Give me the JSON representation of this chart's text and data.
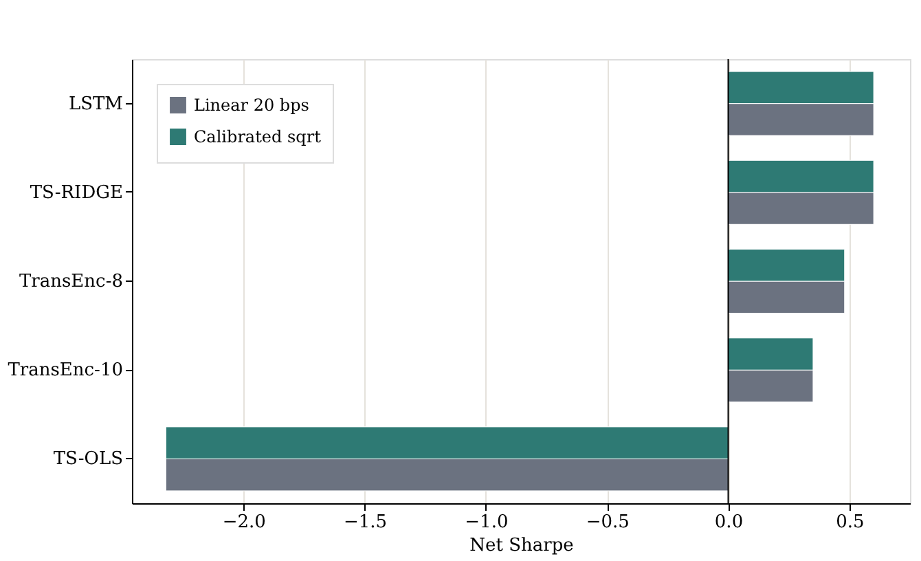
{
  "chart_data": {
    "type": "bar",
    "orientation": "horizontal",
    "xlabel": "Net Sharpe",
    "categories": [
      "LSTM",
      "TS-RIDGE",
      "TransEnc-8",
      "TransEnc-10",
      "TS-OLS"
    ],
    "series": [
      {
        "name": "Linear 20 bps",
        "color": "#6b7280",
        "values": [
          0.6,
          0.6,
          0.48,
          0.35,
          -2.32
        ]
      },
      {
        "name": "Calibrated sqrt",
        "color": "#2e7a74",
        "values": [
          0.6,
          0.6,
          0.48,
          0.35,
          -2.32
        ]
      }
    ],
    "xlim": [
      -2.46,
      0.75
    ],
    "xticks": [
      {
        "value": -2,
        "label": "−2.0"
      },
      {
        "value": -1.5,
        "label": "−1.5"
      },
      {
        "value": -1,
        "label": "−1.0"
      },
      {
        "value": -0.5,
        "label": "−0.5"
      },
      {
        "value": 0,
        "label": "0.0"
      },
      {
        "value": 0.5,
        "label": "0.5"
      }
    ],
    "ref_lines": [
      {
        "axis": "x",
        "value": 0,
        "color": "#000000"
      }
    ],
    "grid": "x",
    "legend": "top left"
  }
}
